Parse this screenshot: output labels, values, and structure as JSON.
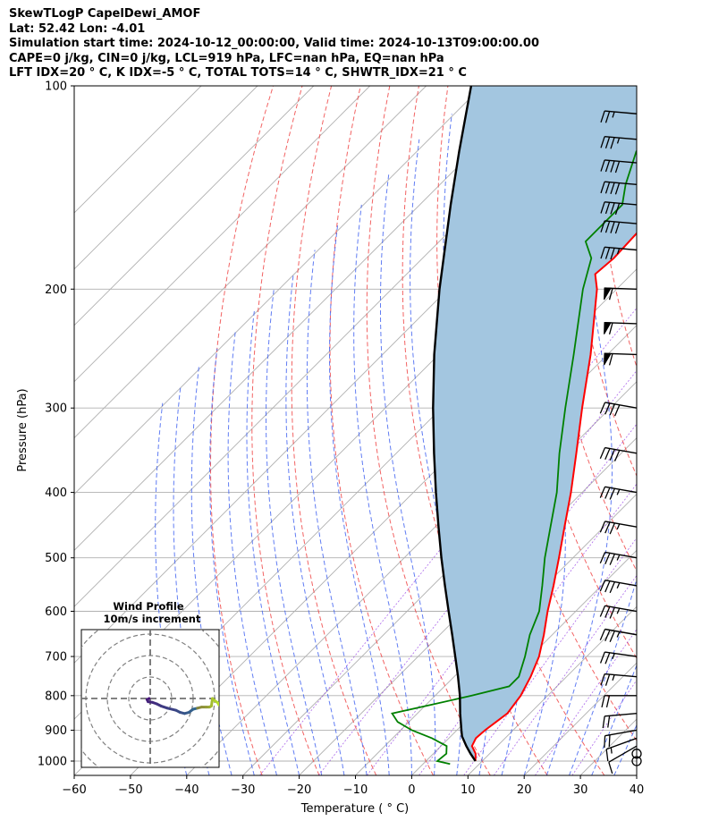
{
  "header": {
    "title": "SkewTLogP CapelDewi_AMOF",
    "location": "Lat: 52.42   Lon: -4.01",
    "times": "Simulation start time: 2024-10-12_00:00:00, Valid time: 2024-10-13T09:00:00.00",
    "indices1": "CAPE=0 j/kg, CIN=0 j/kg, LCL=919 hPa, LFC=nan hPa, EQ=nan hPa",
    "indices2": "LFT IDX=20 ° C, K IDX=-5 ° C, TOTAL TOTS=14 ° C, SHWTR_IDX=21 ° C"
  },
  "chart_data": {
    "type": "line",
    "xlabel": "Temperature ( ° C)",
    "ylabel": "Pressure (hPa)",
    "xlim": [
      -60,
      40
    ],
    "ylim": [
      1050,
      100
    ],
    "y_scale": "log",
    "x_ticks": [
      "−60",
      "−50",
      "−40",
      "−30",
      "−20",
      "−10",
      "0",
      "10",
      "20",
      "30",
      "40"
    ],
    "y_ticks": [
      "100",
      "200",
      "300",
      "400",
      "500",
      "600",
      "700",
      "800",
      "900",
      "1000"
    ],
    "grid": true,
    "series": [
      {
        "key": "temperature",
        "color": "#ff0000",
        "points": [
          [
            1000,
            8.8
          ],
          [
            975,
            7.5
          ],
          [
            950,
            5.5
          ],
          [
            925,
            4.8
          ],
          [
            900,
            5.0
          ],
          [
            875,
            5.5
          ],
          [
            850,
            6.0
          ],
          [
            800,
            5.2
          ],
          [
            750,
            3.6
          ],
          [
            700,
            1.5
          ],
          [
            650,
            -1.5
          ],
          [
            600,
            -5.0
          ],
          [
            550,
            -8.5
          ],
          [
            500,
            -12.5
          ],
          [
            450,
            -17.0
          ],
          [
            400,
            -22.0
          ],
          [
            350,
            -28.0
          ],
          [
            300,
            -35.0
          ],
          [
            250,
            -43.0
          ],
          [
            200,
            -53.5
          ],
          [
            190,
            -56.5
          ],
          [
            180,
            -56.0
          ],
          [
            160,
            -56.5
          ],
          [
            150,
            -57.0
          ],
          [
            140,
            -58.0
          ],
          [
            130,
            -59.5
          ],
          [
            125,
            -60.0
          ],
          [
            115,
            -60.5
          ],
          [
            110,
            -61.5
          ],
          [
            100,
            -64.5
          ]
        ]
      },
      {
        "key": "dewpoint",
        "color": "#008000",
        "points": [
          [
            1010,
            4.8
          ],
          [
            1000,
            2.0
          ],
          [
            975,
            2.3
          ],
          [
            950,
            1.0
          ],
          [
            925,
            -3.0
          ],
          [
            900,
            -8.0
          ],
          [
            875,
            -12.0
          ],
          [
            850,
            -14.5
          ],
          [
            825,
            -9.0
          ],
          [
            800,
            -3.5
          ],
          [
            775,
            1.5
          ],
          [
            750,
            1.5
          ],
          [
            700,
            -1.0
          ],
          [
            650,
            -4.0
          ],
          [
            600,
            -6.5
          ],
          [
            550,
            -10.5
          ],
          [
            500,
            -15.0
          ],
          [
            450,
            -19.5
          ],
          [
            400,
            -24.5
          ],
          [
            350,
            -31.0
          ],
          [
            300,
            -38.0
          ],
          [
            250,
            -46.0
          ],
          [
            200,
            -56.0
          ],
          [
            180,
            -60.0
          ],
          [
            170,
            -64.0
          ],
          [
            160,
            -64.0
          ],
          [
            150,
            -64.0
          ],
          [
            140,
            -67.0
          ],
          [
            125,
            -71.0
          ],
          [
            110,
            -70.5
          ],
          [
            100,
            -70.0
          ]
        ]
      },
      {
        "key": "parcel",
        "color": "#000000",
        "points": [
          [
            1000,
            8.8
          ],
          [
            975,
            6.6
          ],
          [
            950,
            4.5
          ],
          [
            919,
            2.0
          ],
          [
            900,
            0.8
          ],
          [
            850,
            -2.4
          ],
          [
            800,
            -5.6
          ],
          [
            750,
            -9.3
          ],
          [
            700,
            -13.4
          ],
          [
            650,
            -17.8
          ],
          [
            600,
            -22.6
          ],
          [
            550,
            -27.8
          ],
          [
            500,
            -33.4
          ],
          [
            450,
            -39.4
          ],
          [
            400,
            -46.0
          ],
          [
            350,
            -53.3
          ],
          [
            300,
            -61.5
          ],
          [
            250,
            -70.8
          ],
          [
            200,
            -81.5
          ],
          [
            150,
            -94.5
          ],
          [
            125,
            -102.5
          ],
          [
            100,
            -112.0
          ]
        ]
      }
    ],
    "lcl_hpa": 919,
    "shading": {
      "label": "CIN/CAPE area",
      "color": "#a3c6e0"
    },
    "wind_barbs": {
      "pressure_levels": [
        1000,
        975,
        950,
        925,
        900,
        850,
        800,
        750,
        700,
        650,
        600,
        550,
        500,
        450,
        400,
        350,
        300,
        250,
        225,
        200,
        175,
        160,
        150,
        140,
        130,
        120,
        110
      ],
      "speeds_kt": [
        0,
        0,
        10,
        15,
        20,
        20,
        20,
        25,
        25,
        35,
        35,
        35,
        35,
        35,
        35,
        40,
        40,
        60,
        60,
        60,
        35,
        40,
        40,
        40,
        40,
        35,
        25
      ],
      "from_deg": [
        0,
        0,
        240,
        250,
        260,
        265,
        270,
        275,
        278,
        280,
        280,
        280,
        280,
        280,
        280,
        280,
        280,
        272,
        272,
        272,
        275,
        275,
        275,
        275,
        275,
        275,
        275
      ]
    },
    "hodograph": {
      "title": "Wind Profile",
      "subtitle": "10m/s increment",
      "ring_step_ms": 10,
      "u_ms": [
        -0.5,
        -1.5,
        -1.0,
        1.0,
        3.0,
        5.0,
        8.0,
        12.0,
        14.0,
        16.0,
        18.0,
        20.0,
        22.0,
        24.0,
        26.0,
        27.5,
        28.0,
        28.5,
        29.0,
        30.0,
        31.5,
        32.0
      ],
      "v_ms": [
        0.0,
        -0.5,
        -1.5,
        -1.8,
        -2.5,
        -3.5,
        -4.5,
        -5.5,
        -6.5,
        -7.0,
        -6.5,
        -5.0,
        -4.5,
        -4.0,
        -4.0,
        -4.0,
        -3.8,
        -3.5,
        0.0,
        -1.0,
        -2.0,
        -3.0
      ]
    }
  }
}
